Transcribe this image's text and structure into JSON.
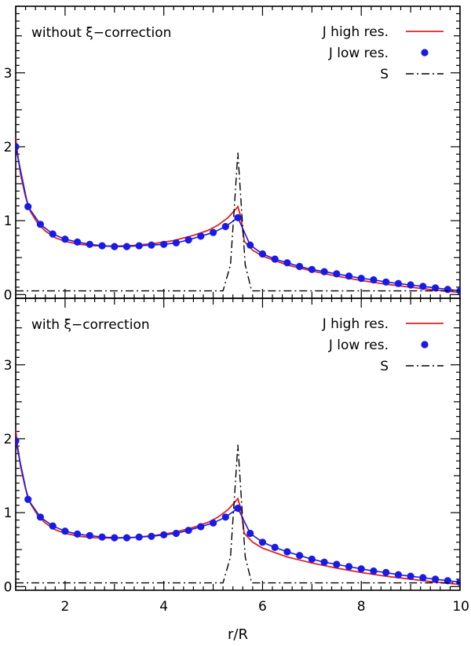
{
  "chart_data": [
    {
      "type": "line",
      "title": "without ξ−correction",
      "xlabel": "r/R",
      "ylabel": "",
      "xlim": [
        1,
        10
      ],
      "ylim": [
        -0.05,
        3.9
      ],
      "xticks": [
        2,
        4,
        6,
        8,
        10
      ],
      "yticks": [
        0,
        1,
        2,
        3
      ],
      "legend_position": "top-right",
      "colors": {
        "j_high": "#e02020",
        "j_low": "#1a1ae6",
        "s": "#000000"
      },
      "series": [
        {
          "name": "J high res.",
          "style": "solid-line",
          "x": [
            1.0,
            1.05,
            1.1,
            1.2,
            1.3,
            1.45,
            1.6,
            1.8,
            2.0,
            2.3,
            2.6,
            3.0,
            3.4,
            3.8,
            4.2,
            4.6,
            4.9,
            5.1,
            5.3,
            5.45,
            5.5,
            5.56,
            5.63,
            5.8,
            6.0,
            6.5,
            7.0,
            7.5,
            8.0,
            8.5,
            9.0,
            9.5,
            10.0
          ],
          "y": [
            2.12,
            1.85,
            1.62,
            1.32,
            1.12,
            0.96,
            0.86,
            0.77,
            0.72,
            0.68,
            0.66,
            0.655,
            0.665,
            0.69,
            0.73,
            0.8,
            0.87,
            0.94,
            1.04,
            1.15,
            1.19,
            1.05,
            0.72,
            0.6,
            0.52,
            0.4,
            0.32,
            0.25,
            0.19,
            0.14,
            0.1,
            0.06,
            0.03
          ]
        },
        {
          "name": "J low res.",
          "style": "markers-line",
          "x": [
            1.0,
            1.25,
            1.5,
            1.75,
            2.0,
            2.25,
            2.5,
            2.75,
            3.0,
            3.25,
            3.5,
            3.75,
            4.0,
            4.25,
            4.5,
            4.75,
            5.0,
            5.25,
            5.5,
            5.75,
            6.0,
            6.25,
            6.5,
            6.75,
            7.0,
            7.25,
            7.5,
            7.75,
            8.0,
            8.25,
            8.5,
            8.75,
            9.0,
            9.25,
            9.5,
            9.75,
            10.0
          ],
          "y": [
            2.0,
            1.19,
            0.95,
            0.82,
            0.75,
            0.71,
            0.68,
            0.66,
            0.65,
            0.65,
            0.66,
            0.67,
            0.68,
            0.7,
            0.74,
            0.79,
            0.84,
            0.92,
            1.04,
            0.67,
            0.55,
            0.48,
            0.43,
            0.38,
            0.34,
            0.31,
            0.28,
            0.25,
            0.22,
            0.2,
            0.17,
            0.15,
            0.13,
            0.11,
            0.09,
            0.07,
            0.05
          ]
        },
        {
          "name": "S",
          "style": "dash-dot-line",
          "x": [
            1.0,
            5.2,
            5.35,
            5.43,
            5.5,
            5.57,
            5.65,
            5.78,
            10.0
          ],
          "y": [
            0.05,
            0.05,
            0.4,
            1.2,
            1.92,
            1.2,
            0.4,
            0.05,
            0.05
          ]
        }
      ]
    },
    {
      "type": "line",
      "title": "with ξ−correction",
      "xlabel": "r/R",
      "ylabel": "",
      "xlim": [
        1,
        10
      ],
      "ylim": [
        -0.05,
        3.9
      ],
      "xticks": [
        2,
        4,
        6,
        8,
        10
      ],
      "yticks": [
        0,
        1,
        2,
        3
      ],
      "legend_position": "top-right",
      "colors": {
        "j_high": "#e02020",
        "j_low": "#1a1ae6",
        "s": "#000000"
      },
      "series": [
        {
          "name": "J high res.",
          "style": "solid-line",
          "x": [
            1.0,
            1.05,
            1.1,
            1.2,
            1.3,
            1.45,
            1.6,
            1.8,
            2.0,
            2.3,
            2.6,
            3.0,
            3.4,
            3.8,
            4.2,
            4.6,
            4.9,
            5.1,
            5.3,
            5.45,
            5.5,
            5.56,
            5.63,
            5.8,
            6.0,
            6.5,
            7.0,
            7.5,
            8.0,
            8.5,
            9.0,
            9.5,
            10.0
          ],
          "y": [
            2.12,
            1.85,
            1.62,
            1.32,
            1.12,
            0.96,
            0.86,
            0.77,
            0.72,
            0.68,
            0.66,
            0.655,
            0.665,
            0.69,
            0.73,
            0.8,
            0.87,
            0.94,
            1.04,
            1.15,
            1.19,
            1.05,
            0.72,
            0.6,
            0.52,
            0.4,
            0.32,
            0.25,
            0.19,
            0.14,
            0.1,
            0.06,
            0.03
          ]
        },
        {
          "name": "J low res.",
          "style": "markers-line",
          "x": [
            1.0,
            1.25,
            1.5,
            1.75,
            2.0,
            2.25,
            2.5,
            2.75,
            3.0,
            3.25,
            3.5,
            3.75,
            4.0,
            4.25,
            4.5,
            4.75,
            5.0,
            5.25,
            5.5,
            5.75,
            6.0,
            6.25,
            6.5,
            6.75,
            7.0,
            7.25,
            7.5,
            7.75,
            8.0,
            8.25,
            8.5,
            8.75,
            9.0,
            9.25,
            9.5,
            9.75,
            10.0
          ],
          "y": [
            1.97,
            1.18,
            0.94,
            0.82,
            0.75,
            0.71,
            0.69,
            0.67,
            0.66,
            0.66,
            0.67,
            0.68,
            0.7,
            0.72,
            0.76,
            0.81,
            0.86,
            0.94,
            1.06,
            0.72,
            0.6,
            0.53,
            0.47,
            0.42,
            0.37,
            0.33,
            0.3,
            0.27,
            0.24,
            0.21,
            0.19,
            0.16,
            0.14,
            0.12,
            0.1,
            0.08,
            0.06
          ]
        },
        {
          "name": "S",
          "style": "dash-dot-line",
          "x": [
            1.0,
            5.2,
            5.35,
            5.43,
            5.5,
            5.57,
            5.65,
            5.78,
            10.0
          ],
          "y": [
            0.05,
            0.05,
            0.4,
            1.2,
            1.92,
            1.2,
            0.4,
            0.05,
            0.05
          ]
        }
      ]
    }
  ]
}
